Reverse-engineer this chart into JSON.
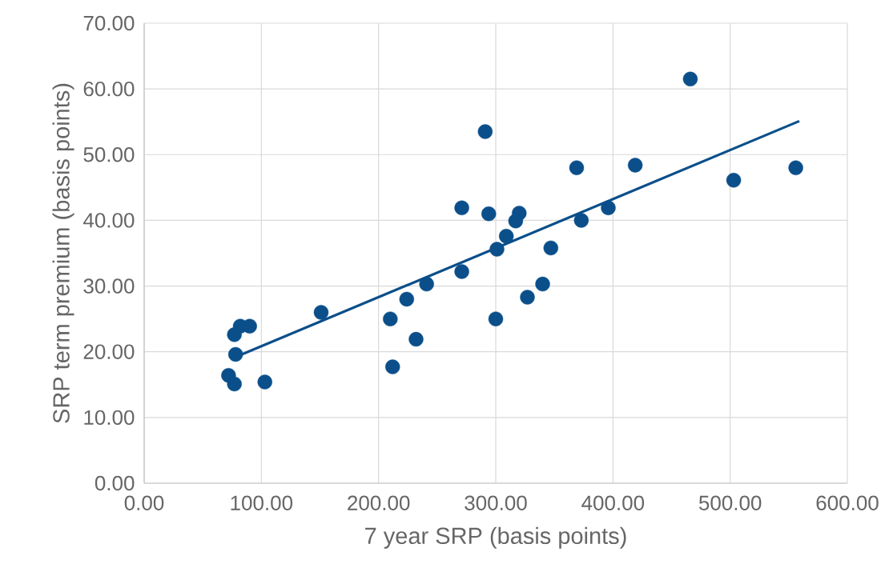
{
  "chart_data": {
    "type": "scatter",
    "xlabel": "7 year SRP (basis points)",
    "ylabel": "SRP term premium (basis points)",
    "xlim": [
      0,
      600
    ],
    "ylim": [
      0,
      70
    ],
    "xticks": [
      {
        "value": 0,
        "label": "0.00"
      },
      {
        "value": 100,
        "label": "100.00"
      },
      {
        "value": 200,
        "label": "200.00"
      },
      {
        "value": 300,
        "label": "300.00"
      },
      {
        "value": 400,
        "label": "400.00"
      },
      {
        "value": 500,
        "label": "500.00"
      },
      {
        "value": 600,
        "label": "600.00"
      }
    ],
    "yticks": [
      {
        "value": 0,
        "label": "0.00"
      },
      {
        "value": 10,
        "label": "10.00"
      },
      {
        "value": 20,
        "label": "20.00"
      },
      {
        "value": 30,
        "label": "30.00"
      },
      {
        "value": 40,
        "label": "40.00"
      },
      {
        "value": 50,
        "label": "50.00"
      },
      {
        "value": 60,
        "label": "60.00"
      },
      {
        "value": 70,
        "label": "70.00"
      }
    ],
    "grid": true,
    "series": [
      {
        "type": "scatter",
        "marker": "circle",
        "color": "#0b4f8a",
        "x": [
          72,
          77,
          78,
          77,
          82,
          90,
          103,
          151,
          210,
          212,
          224,
          232,
          241,
          271,
          271,
          291,
          294,
          300,
          301,
          309,
          317,
          320,
          327,
          340,
          347,
          369,
          373,
          396,
          419,
          466,
          503,
          556
        ],
        "values": [
          16.4,
          15.1,
          19.6,
          22.6,
          23.9,
          23.9,
          15.4,
          26.0,
          25.0,
          17.7,
          28.0,
          21.9,
          30.3,
          32.2,
          41.9,
          53.5,
          41.0,
          25.0,
          35.6,
          37.6,
          39.9,
          41.1,
          28.3,
          30.3,
          35.8,
          48.0,
          40.0,
          41.9,
          48.4,
          61.5,
          46.1,
          48.0
        ]
      },
      {
        "type": "line",
        "marker": "none",
        "line_style": "solid",
        "color": "#0b4f8a",
        "x": [
          78,
          559
        ],
        "values": [
          19.2,
          55.1
        ]
      }
    ]
  }
}
